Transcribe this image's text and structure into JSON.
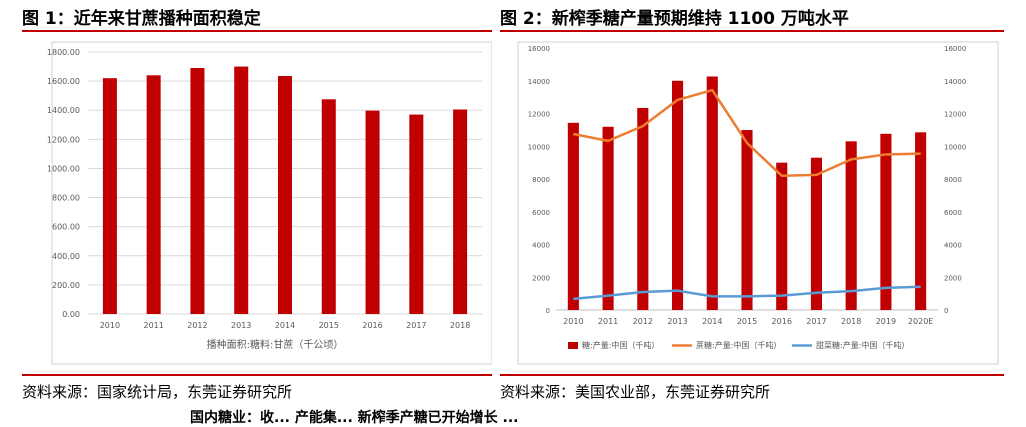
{
  "figure1": {
    "title": "图 1：近年来甘蔗播种面积稳定",
    "source": "资料来源：国家统计局，东莞证券研究所"
  },
  "figure2": {
    "title": "图 2：新榨季糖产量预期维持 1100 万吨水平",
    "source": "资料来源：美国农业部，东莞证券研究所"
  },
  "footer_fragment": "国内糖业：收... 产能集... 新榨季产糖已开始增长 ...",
  "chart_data": [
    {
      "type": "bar",
      "categories": [
        "2010",
        "2011",
        "2012",
        "2013",
        "2014",
        "2015",
        "2016",
        "2017",
        "2018"
      ],
      "series": [
        {
          "name": "播种面积:糖料:甘蔗（千公顷）",
          "values": [
            1620,
            1640,
            1690,
            1700,
            1635,
            1475,
            1397,
            1370,
            1405
          ],
          "color": "#c00000"
        }
      ],
      "yticks": [
        "0.00",
        "200.00",
        "400.00",
        "600.00",
        "800.00",
        "1000.00",
        "1200.00",
        "1400.00",
        "1600.00",
        "1800.00"
      ],
      "ylim": [
        0,
        1800
      ],
      "grid": true,
      "legend_position": "bottom"
    },
    {
      "type": "bar",
      "categories": [
        "2010",
        "2011",
        "2012",
        "2013",
        "2014",
        "2015",
        "2016",
        "2017",
        "2018",
        "2019",
        "2020E"
      ],
      "series": [
        {
          "name": "糖:产量:中国（千吨）",
          "type": "bar",
          "values": [
            11430,
            11190,
            12340,
            14000,
            14260,
            10990,
            9000,
            9300,
            10300,
            10760,
            10850
          ],
          "color": "#c00000"
        },
        {
          "name": "蔗糖:产量:中国（千吨）",
          "type": "line",
          "values": [
            10750,
            10330,
            11230,
            12830,
            13430,
            10200,
            8200,
            8250,
            9200,
            9500,
            9550
          ],
          "color": "#ed7d31"
        },
        {
          "name": "甜菜糖:产量:中国（千吨）",
          "type": "line",
          "values": [
            680,
            880,
            1100,
            1180,
            830,
            830,
            880,
            1050,
            1150,
            1350,
            1420
          ],
          "color": "#5b9bd5"
        }
      ],
      "yticks": [
        "0",
        "2000",
        "4000",
        "6000",
        "8000",
        "10000",
        "12000",
        "14000",
        "16000"
      ],
      "ylim": [
        0,
        16000
      ],
      "grid": false,
      "legend_position": "bottom"
    }
  ]
}
